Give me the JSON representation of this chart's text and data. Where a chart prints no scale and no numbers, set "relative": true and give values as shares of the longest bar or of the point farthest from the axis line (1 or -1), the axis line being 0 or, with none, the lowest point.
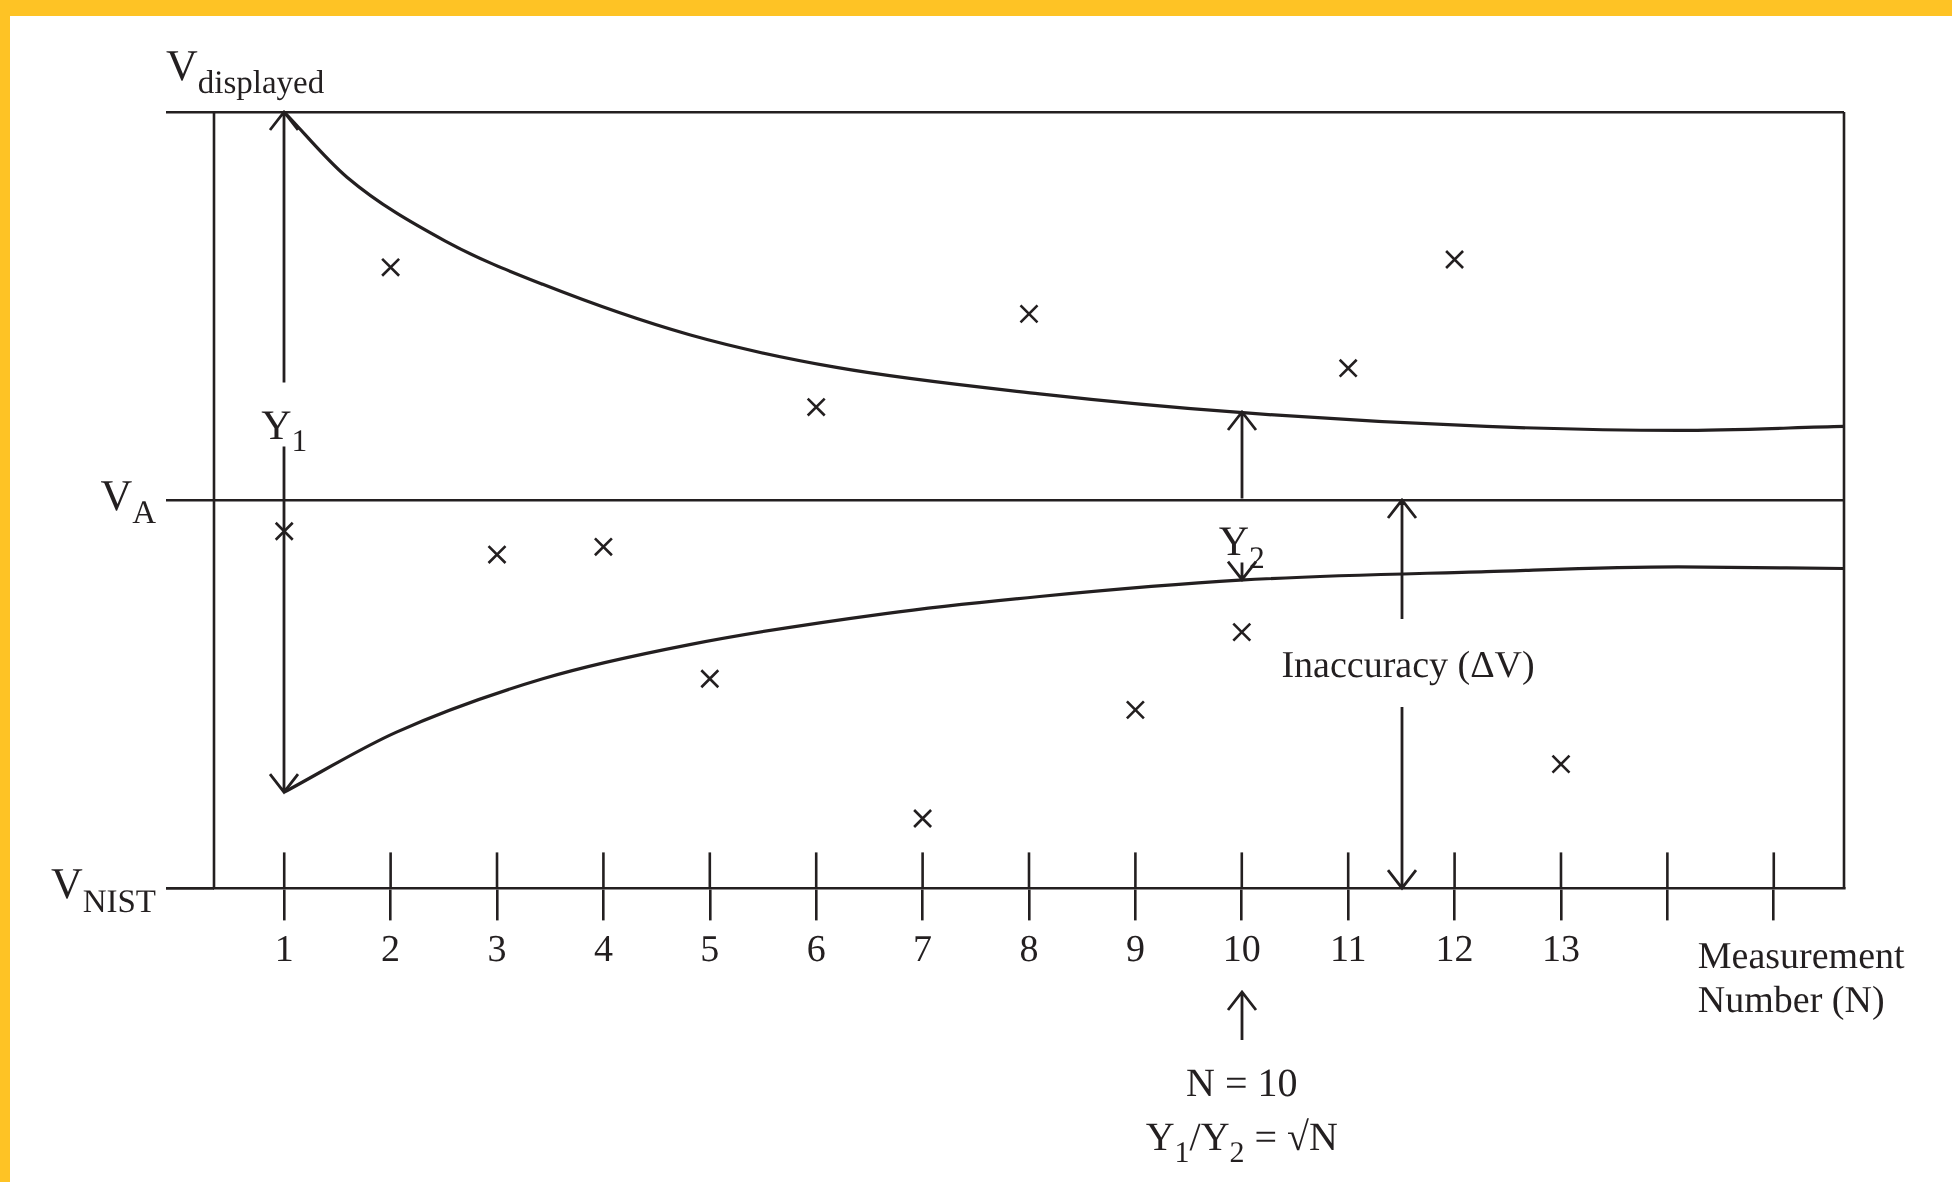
{
  "chart_data": {
    "type": "scatter",
    "relative": true,
    "xlabel": "Measurement Number (N)",
    "xlim": [
      0.34,
      15.66
    ],
    "xticks": [
      1,
      2,
      3,
      4,
      5,
      6,
      7,
      8,
      9,
      10,
      11,
      12,
      13,
      {
        "value": 14,
        "label": null
      },
      {
        "value": 15,
        "label": null
      }
    ],
    "series": [
      {
        "color": "#231f20",
        "marker": "cross",
        "x": [
          1,
          2,
          3,
          4,
          5,
          6,
          7,
          8,
          9,
          10,
          11,
          12,
          13
        ],
        "values": [
          0.46,
          0.8,
          0.43,
          0.44,
          0.27,
          0.62,
          0.09,
          0.74,
          0.23,
          0.33,
          0.67,
          0.81,
          0.16
        ]
      },
      {
        "type": "line",
        "color": "#231f20",
        "marker": "none",
        "x": [
          1,
          1.59,
          2.51,
          3.43,
          4.81,
          6.19,
          8.1,
          9.98,
          12.3,
          14.1,
          15.66
        ],
        "values": [
          1.0,
          0.916,
          0.834,
          0.778,
          0.713,
          0.671,
          0.637,
          0.613,
          0.595,
          0.59,
          0.595
        ]
      },
      {
        "type": "line",
        "color": "#231f20",
        "marker": "none",
        "x": [
          1,
          2.05,
          3.43,
          4.81,
          6.65,
          8.1,
          9.98,
          12.3,
          14.1,
          15.66
        ],
        "values": [
          0.124,
          0.201,
          0.27,
          0.314,
          0.354,
          0.376,
          0.397,
          0.408,
          0.414,
          0.412
        ]
      }
    ],
    "ref_lines": [
      {
        "axis": "y",
        "value": 1,
        "label": "V$_{displayed}$"
      },
      {
        "axis": "y",
        "value": 0.5,
        "label": "V$_{A}$"
      }
    ],
    "annotations": [
      "Y$_{1}$",
      {
        "text": "Y$_{2}$",
        "x": 10,
        "y": 0.613
      },
      "Inaccuracy (ΔV)",
      "N = 10",
      "Y$_{1}$/Y$_{2}$ = √N",
      "V$_{NIST}$"
    ]
  }
}
